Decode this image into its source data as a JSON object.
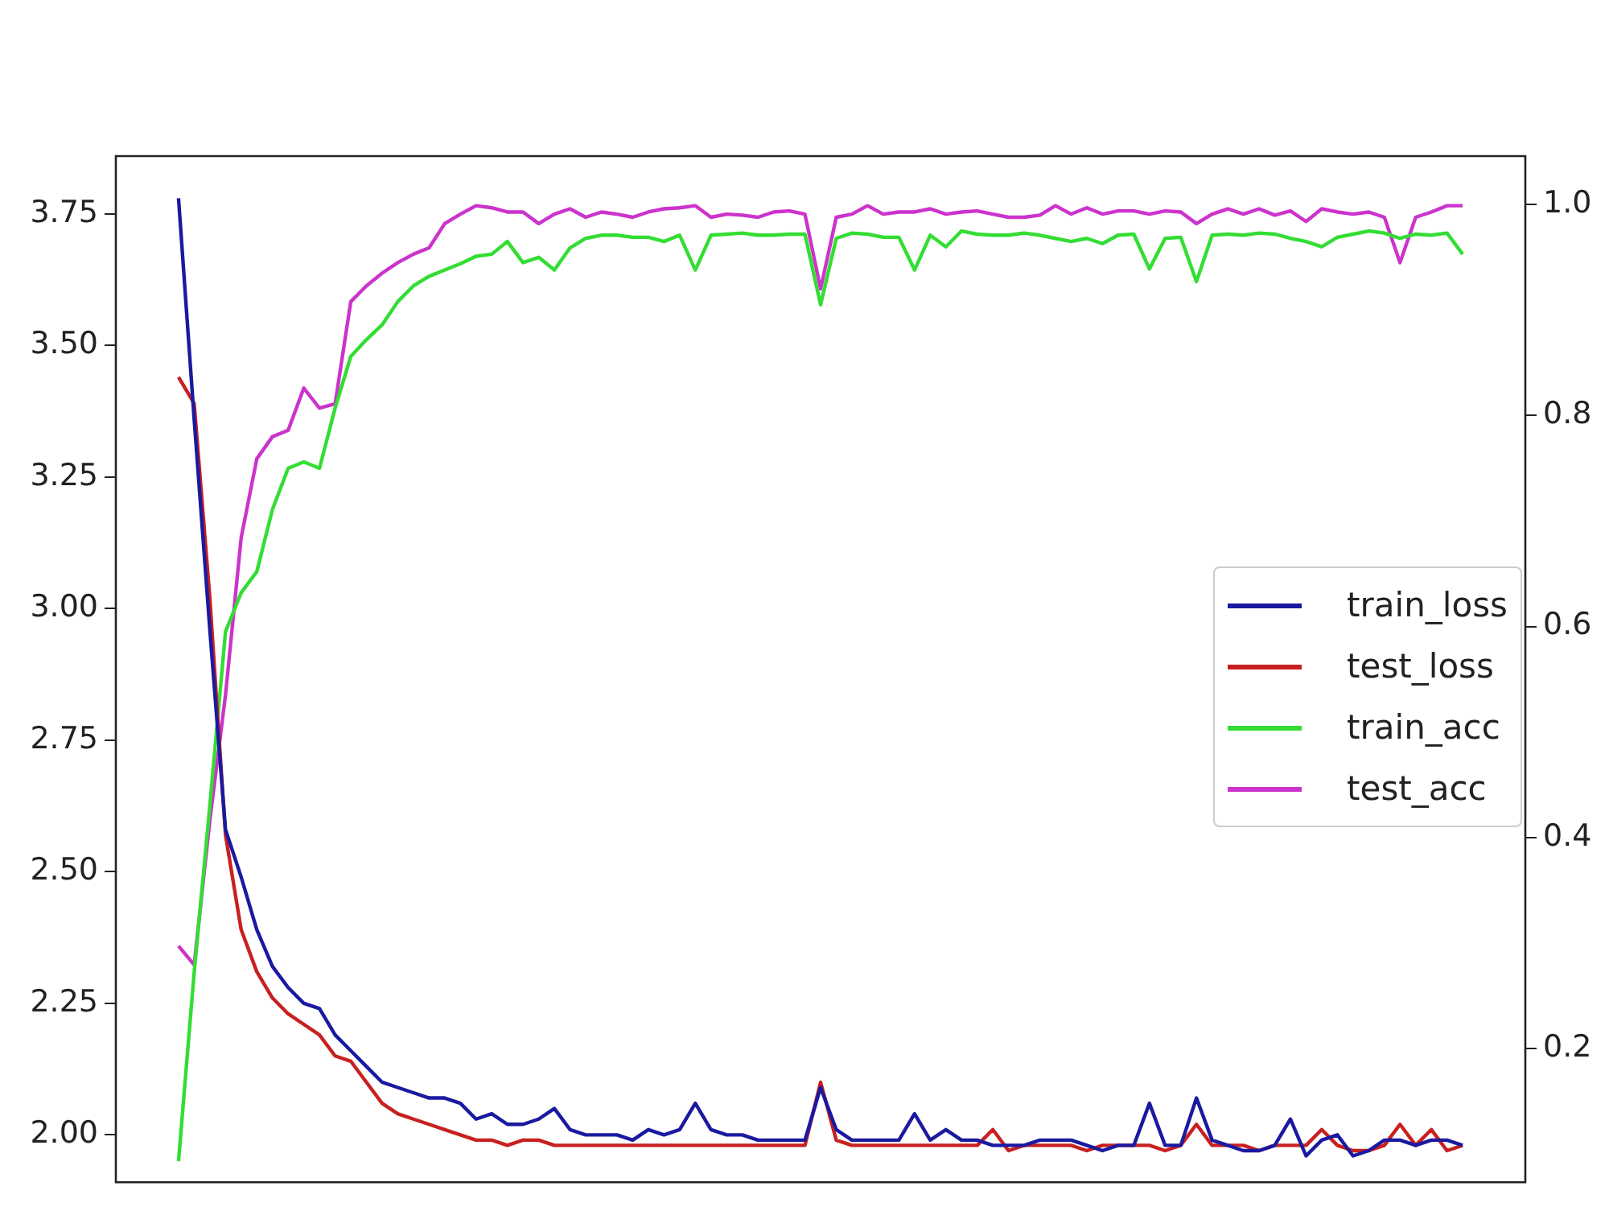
{
  "chart_data": {
    "type": "line",
    "categories": [
      null,
      null,
      null,
      null,
      null,
      null,
      null,
      null,
      null,
      null,
      null,
      null,
      null,
      null,
      null,
      null,
      null,
      null,
      null,
      null,
      null,
      null,
      null,
      null,
      null,
      null,
      null,
      null,
      null,
      null,
      null,
      null,
      null,
      null,
      null,
      null,
      null,
      null,
      null,
      null,
      null,
      null,
      null,
      null,
      null,
      null,
      null,
      null,
      null,
      null,
      null,
      null,
      null,
      null,
      null,
      null,
      null,
      null,
      null,
      null,
      null,
      null,
      null,
      null,
      null,
      null,
      null,
      null,
      null,
      null,
      null,
      null,
      null,
      null,
      null,
      null,
      null,
      null,
      null,
      null,
      null,
      null,
      null
    ],
    "series": [
      {
        "name": "train_loss",
        "color": "#1a1aa0",
        "values": [
          3.78,
          3.36,
          2.96,
          2.58,
          2.49,
          2.39,
          2.32,
          2.28,
          2.25,
          2.24,
          2.19,
          2.16,
          2.13,
          2.1,
          2.09,
          2.08,
          2.07,
          2.07,
          2.06,
          2.03,
          2.04,
          2.02,
          2.02,
          2.03,
          2.05,
          2.01,
          2.0,
          2.0,
          2.0,
          1.99,
          2.01,
          2.0,
          2.01,
          2.06,
          2.01,
          2.0,
          2.0,
          1.99,
          1.99,
          1.99,
          1.99,
          2.09,
          2.01,
          1.99,
          1.99,
          1.99,
          1.99,
          2.04,
          1.99,
          2.01,
          1.99,
          1.99,
          1.98,
          1.98,
          1.98,
          1.99,
          1.99,
          1.99,
          1.98,
          1.97,
          1.98,
          1.98,
          2.06,
          1.98,
          1.98,
          2.07,
          1.99,
          1.98,
          1.97,
          1.97,
          1.98,
          2.03,
          1.96,
          1.99,
          2.0,
          1.96,
          1.97,
          1.99,
          1.99,
          1.98,
          1.99,
          1.99,
          1.98
        ]
      },
      {
        "name": "test_loss",
        "color": "#c82020",
        "values": [
          3.44,
          3.39,
          3.02,
          2.57,
          2.39,
          2.31,
          2.26,
          2.23,
          2.21,
          2.19,
          2.15,
          2.14,
          2.1,
          2.06,
          2.04,
          2.03,
          2.02,
          2.01,
          2.0,
          1.99,
          1.99,
          1.98,
          1.99,
          1.99,
          1.98,
          1.98,
          1.98,
          1.98,
          1.98,
          1.98,
          1.98,
          1.98,
          1.98,
          1.98,
          1.98,
          1.98,
          1.98,
          1.98,
          1.98,
          1.98,
          1.98,
          2.1,
          1.99,
          1.98,
          1.98,
          1.98,
          1.98,
          1.98,
          1.98,
          1.98,
          1.98,
          1.98,
          2.01,
          1.97,
          1.98,
          1.98,
          1.98,
          1.98,
          1.97,
          1.98,
          1.98,
          1.98,
          1.98,
          1.97,
          1.98,
          2.02,
          1.98,
          1.98,
          1.98,
          1.97,
          1.98,
          1.98,
          1.98,
          2.01,
          1.98,
          1.97,
          1.97,
          1.98,
          2.02,
          1.98,
          2.01,
          1.97,
          1.98
        ]
      },
      {
        "name": "train_acc",
        "color": "#33dd33",
        "axis": "y2",
        "values": [
          0.093,
          0.272,
          0.43,
          0.595,
          0.632,
          0.652,
          0.711,
          0.75,
          0.756,
          0.75,
          0.807,
          0.856,
          0.872,
          0.886,
          0.908,
          0.923,
          0.932,
          0.938,
          0.944,
          0.951,
          0.953,
          0.965,
          0.945,
          0.95,
          0.938,
          0.959,
          0.968,
          0.971,
          0.971,
          0.969,
          0.969,
          0.965,
          0.971,
          0.938,
          0.971,
          0.972,
          0.973,
          0.971,
          0.971,
          0.972,
          0.972,
          0.905,
          0.968,
          0.973,
          0.972,
          0.969,
          0.969,
          0.938,
          0.971,
          0.96,
          0.975,
          0.972,
          0.971,
          0.971,
          0.973,
          0.971,
          0.968,
          0.965,
          0.968,
          0.963,
          0.971,
          0.972,
          0.939,
          0.968,
          0.969,
          0.927,
          0.971,
          0.972,
          0.971,
          0.973,
          0.972,
          0.968,
          0.965,
          0.96,
          0.969,
          0.972,
          0.975,
          0.973,
          0.968,
          0.972,
          0.971,
          0.973,
          0.953
        ]
      },
      {
        "name": "test_acc",
        "color": "#cc33cc",
        "axis": "y2",
        "values": [
          0.297,
          0.279,
          0.416,
          0.535,
          0.684,
          0.759,
          0.78,
          0.786,
          0.826,
          0.807,
          0.811,
          0.908,
          0.923,
          0.935,
          0.945,
          0.953,
          0.959,
          0.982,
          0.991,
          0.999,
          0.997,
          0.993,
          0.993,
          0.982,
          0.991,
          0.996,
          0.988,
          0.993,
          0.991,
          0.988,
          0.993,
          0.996,
          0.997,
          0.999,
          0.988,
          0.991,
          0.99,
          0.988,
          0.993,
          0.994,
          0.991,
          0.92,
          0.988,
          0.991,
          0.999,
          0.991,
          0.993,
          0.993,
          0.996,
          0.991,
          0.993,
          0.994,
          0.991,
          0.988,
          0.988,
          0.99,
          0.999,
          0.991,
          0.997,
          0.991,
          0.994,
          0.994,
          0.991,
          0.994,
          0.993,
          0.982,
          0.991,
          0.996,
          0.991,
          0.996,
          0.99,
          0.994,
          0.984,
          0.996,
          0.993,
          0.991,
          0.993,
          0.988,
          0.945,
          0.988,
          0.993,
          0.999,
          0.999
        ]
      }
    ],
    "ylim": [
      1.91,
      3.86
    ],
    "yticks": [
      {
        "value": 2,
        "label": "2.00"
      },
      {
        "value": 2.25,
        "label": "2.25"
      },
      {
        "value": 2.5,
        "label": "2.50"
      },
      {
        "value": 2.75,
        "label": "2.75"
      },
      {
        "value": 3,
        "label": "3.00"
      },
      {
        "value": 3.25,
        "label": "3.25"
      },
      {
        "value": 3.5,
        "label": "3.50"
      },
      {
        "value": 3.75,
        "label": "3.75"
      }
    ],
    "y2lim": [
      0.073,
      1.046
    ],
    "y2ticks": [
      0.2,
      0.4,
      0.6,
      0.8,
      {
        "value": 1,
        "label": "1.0"
      }
    ],
    "grid": false,
    "legend": "right"
  }
}
